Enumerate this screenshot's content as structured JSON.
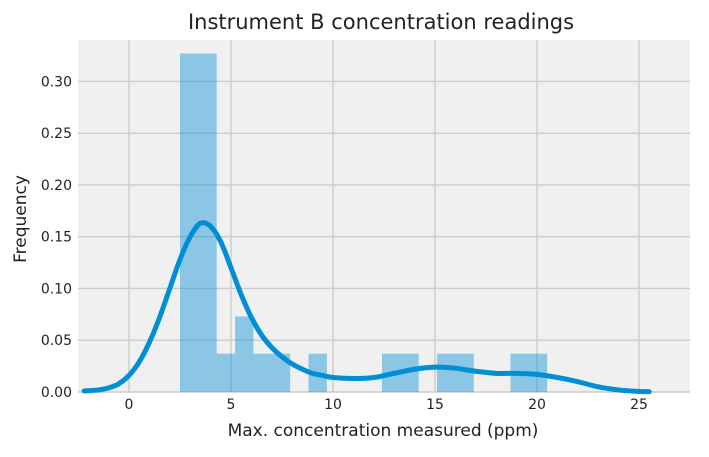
{
  "chart_data": {
    "type": "bar",
    "title": "Instrument B concentration readings",
    "xlabel": "Max. concentration measured (ppm)",
    "ylabel": "Frequency",
    "xlim": [
      -2.5,
      27.5
    ],
    "ylim": [
      0,
      0.34
    ],
    "xticks": [
      0,
      5,
      10,
      15,
      20,
      25
    ],
    "yticks": [
      0.0,
      0.05,
      0.1,
      0.15,
      0.2,
      0.25,
      0.3
    ],
    "ytick_labels": [
      "0.00",
      "0.05",
      "0.10",
      "0.15",
      "0.20",
      "0.25",
      "0.30"
    ],
    "grid": true,
    "series": [
      {
        "type": "histogram",
        "bins": [
          {
            "x0": 2.5,
            "x1": 4.3,
            "value": 0.327
          },
          {
            "x0": 4.3,
            "x1": 5.2,
            "value": 0.037
          },
          {
            "x0": 5.2,
            "x1": 6.1,
            "value": 0.073
          },
          {
            "x0": 6.1,
            "x1": 7.9,
            "value": 0.037
          },
          {
            "x0": 8.8,
            "x1": 9.7,
            "value": 0.037
          },
          {
            "x0": 12.4,
            "x1": 14.2,
            "value": 0.037
          },
          {
            "x0": 15.1,
            "x1": 16.9,
            "value": 0.037
          },
          {
            "x0": 18.7,
            "x1": 20.5,
            "value": 0.037
          }
        ]
      },
      {
        "type": "kde",
        "x": [
          -2.2,
          -1.5,
          -1,
          -0.5,
          0,
          0.5,
          1,
          1.5,
          2,
          2.5,
          3,
          3.5,
          4,
          4.5,
          5,
          5.5,
          6,
          6.5,
          7,
          7.5,
          8,
          8.5,
          9,
          9.5,
          10,
          11,
          12,
          13,
          14,
          15,
          16,
          17,
          18,
          19,
          20,
          21,
          22,
          23,
          24,
          25,
          25.5
        ],
        "y": [
          0.001,
          0.002,
          0.004,
          0.008,
          0.016,
          0.029,
          0.048,
          0.072,
          0.1,
          0.128,
          0.15,
          0.163,
          0.16,
          0.145,
          0.12,
          0.094,
          0.072,
          0.055,
          0.043,
          0.034,
          0.027,
          0.022,
          0.018,
          0.016,
          0.014,
          0.013,
          0.014,
          0.018,
          0.022,
          0.024,
          0.023,
          0.02,
          0.018,
          0.018,
          0.017,
          0.014,
          0.01,
          0.005,
          0.002,
          0.0005,
          0.0003
        ]
      }
    ]
  }
}
